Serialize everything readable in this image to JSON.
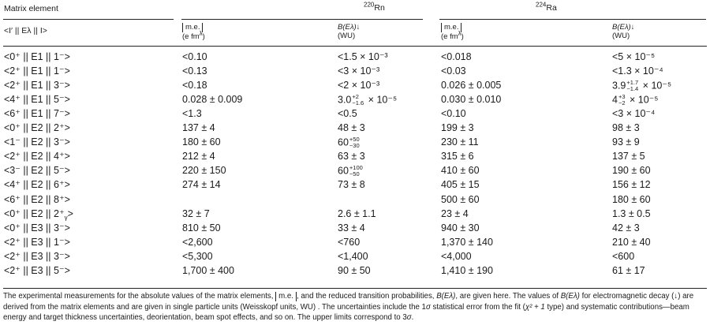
{
  "header": {
    "matrix_element": "Matrix element",
    "rn_label": "Rn",
    "rn_mass": "220",
    "ra_label": "Ra",
    "ra_mass": "224",
    "operator": "<I′ || Eλ || I>",
    "me": "m.e.",
    "me_unit": "(e fm",
    "me_unit_exp": "λ",
    "me_unit_close": ")",
    "b_label": "B(Eλ)↓",
    "b_unit": "(WU)"
  },
  "rows": [
    {
      "me": "<0⁺ || E1 || 1⁻>",
      "rn_me": "<0.10",
      "rn_b": "<1.5 × 10⁻³",
      "ra_me": "<0.018",
      "ra_b": "<5 × 10⁻⁵"
    },
    {
      "me": "<2⁺ || E1 || 1⁻>",
      "rn_me": "<0.13",
      "rn_b": "<3 × 10⁻³",
      "ra_me": "<0.03",
      "ra_b": "<1.3 × 10⁻⁴"
    },
    {
      "me": "<2⁺ || E1 || 3⁻>",
      "rn_me": "<0.18",
      "rn_b": "<2 × 10⁻³",
      "ra_me": "0.026 ± 0.005",
      "ra_b_base": "3.9",
      "ra_b_up": "+1.7",
      "ra_b_dn": "−1.4",
      "ra_b_tail": " × 10⁻⁵"
    },
    {
      "me": "<4⁺ || E1 || 5⁻>",
      "rn_me": "0.028 ± 0.009",
      "rn_b_base": "3.0",
      "rn_b_up": "+2",
      "rn_b_dn": "−1.6",
      "rn_b_tail": " × 10⁻⁵",
      "ra_me": "0.030 ± 0.010",
      "ra_b_base": "4",
      "ra_b_up": "+3",
      "ra_b_dn": "−2",
      "ra_b_tail": " × 10⁻⁵"
    },
    {
      "me": "<6⁺ || E1 || 7⁻>",
      "rn_me": "<1.3",
      "rn_b": "<0.5",
      "ra_me": "<0.10",
      "ra_b": "<3 × 10⁻⁴"
    },
    {
      "me": "<0⁺ || E2 || 2⁺>",
      "rn_me": "137 ± 4",
      "rn_b": "48 ± 3",
      "ra_me": "199 ± 3",
      "ra_b": "98 ± 3"
    },
    {
      "me": "<1⁻ || E2 || 3⁻>",
      "rn_me": "180 ± 60",
      "rn_b_base": "60",
      "rn_b_up": "+50",
      "rn_b_dn": "−30",
      "rn_b_tail": "",
      "ra_me": "230 ± 11",
      "ra_b": "93 ± 9"
    },
    {
      "me": "<2⁺ || E2 || 4⁺>",
      "rn_me": "212 ± 4",
      "rn_b": "63 ± 3",
      "ra_me": "315 ± 6",
      "ra_b": "137 ± 5"
    },
    {
      "me": "<3⁻ || E2 || 5⁻>",
      "rn_me": "220 ± 150",
      "rn_b_base": "60",
      "rn_b_up": "+100",
      "rn_b_dn": "−50",
      "rn_b_tail": "",
      "ra_me": "410 ± 60",
      "ra_b": "190 ± 60"
    },
    {
      "me": "<4⁺ || E2 || 6⁺>",
      "rn_me": "274 ± 14",
      "rn_b": "73 ± 8",
      "ra_me": "405 ± 15",
      "ra_b": "156 ± 12"
    },
    {
      "me": "<6⁺ || E2 || 8⁺>",
      "rn_me": "",
      "rn_b": "",
      "ra_me": "500 ± 60",
      "ra_b": "180 ± 60"
    },
    {
      "me": "<0⁺ || E2 || 2⁺",
      "me_sub": "γ",
      "me_tail": ">",
      "rn_me": "32 ± 7",
      "rn_b": "2.6 ± 1.1",
      "ra_me": "23 ± 4",
      "ra_b": "1.3 ± 0.5"
    },
    {
      "me": "<0⁺ || E3 || 3⁻>",
      "rn_me": "810 ± 50",
      "rn_b": "33 ± 4",
      "ra_me": "940 ± 30",
      "ra_b": "42 ± 3"
    },
    {
      "me": "<2⁺ || E3 || 1⁻>",
      "rn_me": "<2,600",
      "rn_b": "<760",
      "ra_me": "1,370 ± 140",
      "ra_b": "210 ± 40"
    },
    {
      "me": "<2⁺ || E3 || 3⁻>",
      "rn_me": "<5,300",
      "rn_b": "<1,400",
      "ra_me": "<4,000",
      "ra_b": "<600"
    },
    {
      "me": "<2⁺ || E3 || 5⁻>",
      "rn_me": "1,700 ± 400",
      "rn_b": "90 ± 50",
      "ra_me": "1,410 ± 190",
      "ra_b": "61 ± 17"
    }
  ],
  "footnote": {
    "p1": "The experimental measurements for the absolute values of the matrix elements, ",
    "p1_me": "m.e.",
    "p2": ", and the reduced transition probabilities, ",
    "p2_b": "B(Eλ)",
    "p3": ", are given here. The values of ",
    "p3_b": "B(Eλ)",
    "p4": " for electromagnetic decay (↓) are derived from the matrix elements and are given in single particle units (Weisskopf units, WU) . The uncertainties include the 1",
    "p4_sigma": "σ",
    "p5": " statistical error from the fit (",
    "p5_chi": "χ² + 1",
    "p6": " type) and systematic contributions—beam energy and target thickness uncertainties, deorientation, beam spot effects, and so on. The upper limits correspond to 3",
    "p6_sigma": "σ",
    "p7": "."
  }
}
